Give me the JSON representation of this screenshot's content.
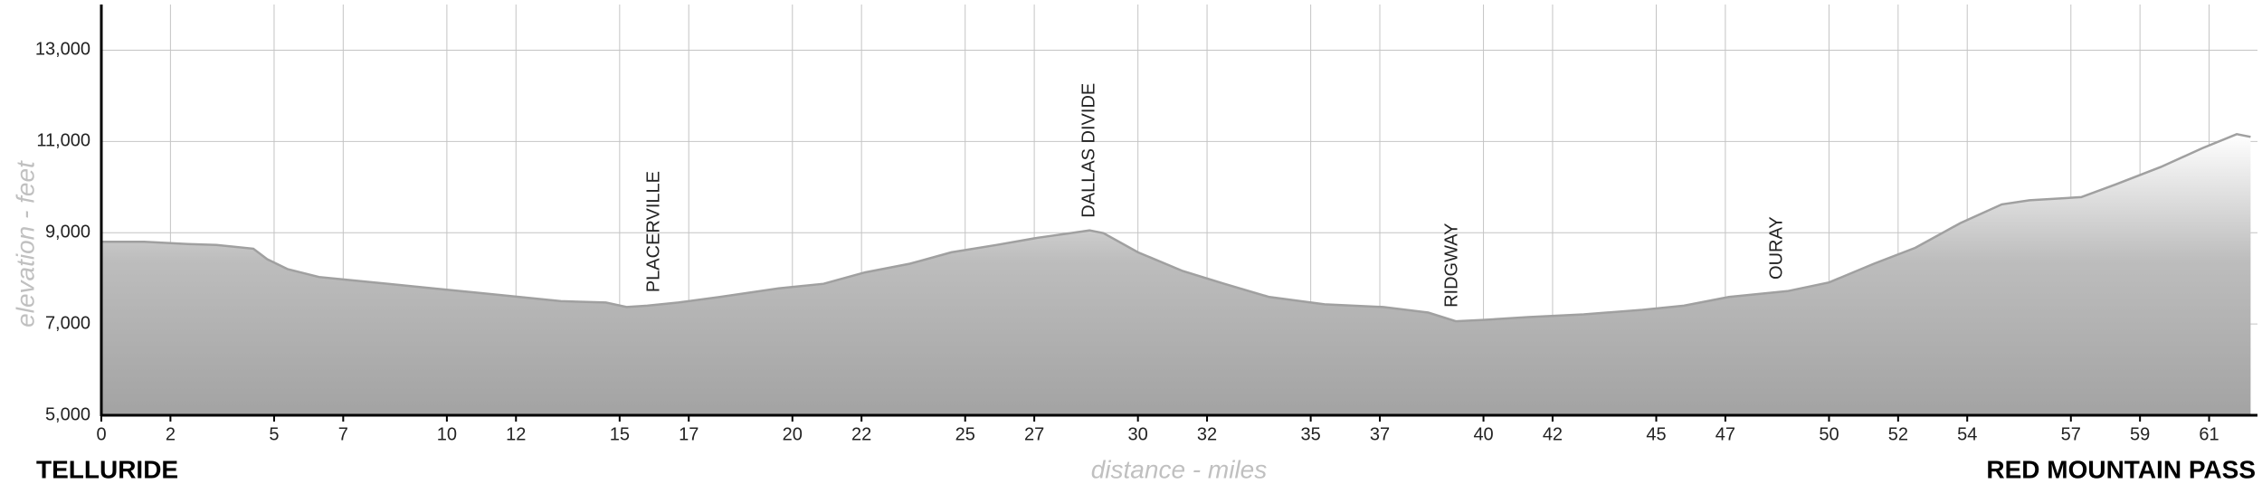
{
  "chart_data": {
    "type": "area",
    "ylabel": "elevation - feet",
    "xlabel": "distance - miles",
    "start_label": "TELLURIDE",
    "end_label": "RED MOUNTAIN PASS",
    "x": [
      0,
      1.25,
      2.5,
      3.33,
      4.4,
      4.8,
      5.4,
      6.3,
      7.1,
      8.3,
      9.6,
      10.8,
      12.1,
      13.3,
      14.6,
      15.2,
      15.8,
      16.7,
      17.9,
      19.6,
      20.9,
      22.1,
      23.4,
      24.6,
      25.9,
      27.1,
      28.6,
      29.0,
      30.0,
      31.3,
      32.5,
      33.8,
      35.4,
      37.1,
      38.4,
      39.2,
      40.0,
      41.3,
      42.9,
      44.6,
      45.8,
      47.1,
      48.8,
      50.0,
      51.3,
      52.5,
      53.8,
      55.0,
      55.8,
      57.3,
      58.3,
      59.6,
      60.8,
      61.8,
      62.2
    ],
    "values": [
      8800,
      8800,
      8750,
      8730,
      8650,
      8420,
      8200,
      8030,
      7970,
      7880,
      7780,
      7690,
      7590,
      7500,
      7470,
      7370,
      7400,
      7470,
      7590,
      7780,
      7880,
      8130,
      8320,
      8570,
      8730,
      8890,
      9050,
      8990,
      8570,
      8160,
      7880,
      7590,
      7430,
      7370,
      7250,
      7060,
      7090,
      7150,
      7210,
      7310,
      7400,
      7590,
      7720,
      7910,
      8320,
      8670,
      9210,
      9620,
      9710,
      9780,
      10060,
      10440,
      10850,
      11160,
      11100
    ],
    "color": "#a0a0a0",
    "xlim": [
      0,
      62.4
    ],
    "ylim": [
      5000,
      14000
    ],
    "xticks": [
      0,
      2,
      5,
      7,
      10,
      12,
      15,
      17,
      20,
      22,
      25,
      27,
      30,
      32,
      35,
      37,
      40,
      42,
      45,
      47,
      50,
      52,
      54,
      57,
      59,
      61
    ],
    "yticks": [
      {
        "value": 5000,
        "label": "5,000"
      },
      {
        "value": 7000,
        "label": "7,000"
      },
      {
        "value": 9000,
        "label": "9,000"
      },
      {
        "value": 11000,
        "label": "11,000"
      },
      {
        "value": 13000,
        "label": "13,000"
      }
    ],
    "grid": true,
    "annotations": [
      {
        "text": "PLACERVILLE",
        "x": 16
      },
      {
        "text": "DALLAS DIVIDE",
        "x": 28.6
      },
      {
        "text": "RIDGWAY",
        "x": 39.1
      },
      {
        "text": "OURAY",
        "x": 48.5
      }
    ]
  }
}
